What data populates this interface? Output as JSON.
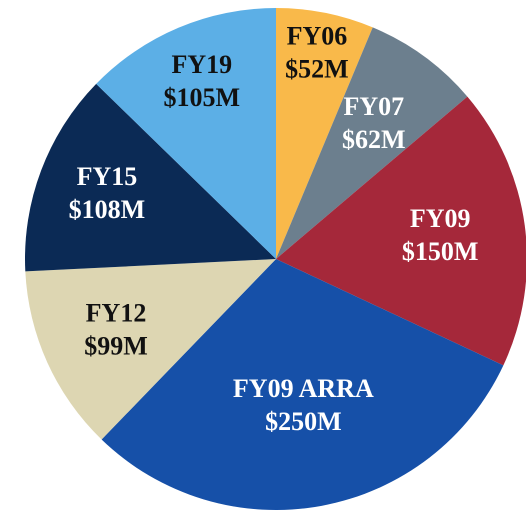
{
  "chart_data": {
    "type": "pie",
    "categories": [
      "FY06",
      "FY07",
      "FY09",
      "FY09 ARRA",
      "FY12",
      "FY15",
      "FY19"
    ],
    "values": [
      52,
      62,
      150,
      250,
      99,
      108,
      105
    ],
    "value_labels": [
      "$52M",
      "$62M",
      "$150M",
      "$250M",
      "$99M",
      "$108M",
      "$105M"
    ],
    "colors": [
      "#f9b94a",
      "#6c7f8e",
      "#a5283a",
      "#1650a8",
      "#ddd6b2",
      "#0b2a55",
      "#5cafe6"
    ],
    "label_colors": [
      "#111111",
      "#ffffff",
      "#ffffff",
      "#ffffff",
      "#111111",
      "#ffffff",
      "#111111"
    ]
  }
}
